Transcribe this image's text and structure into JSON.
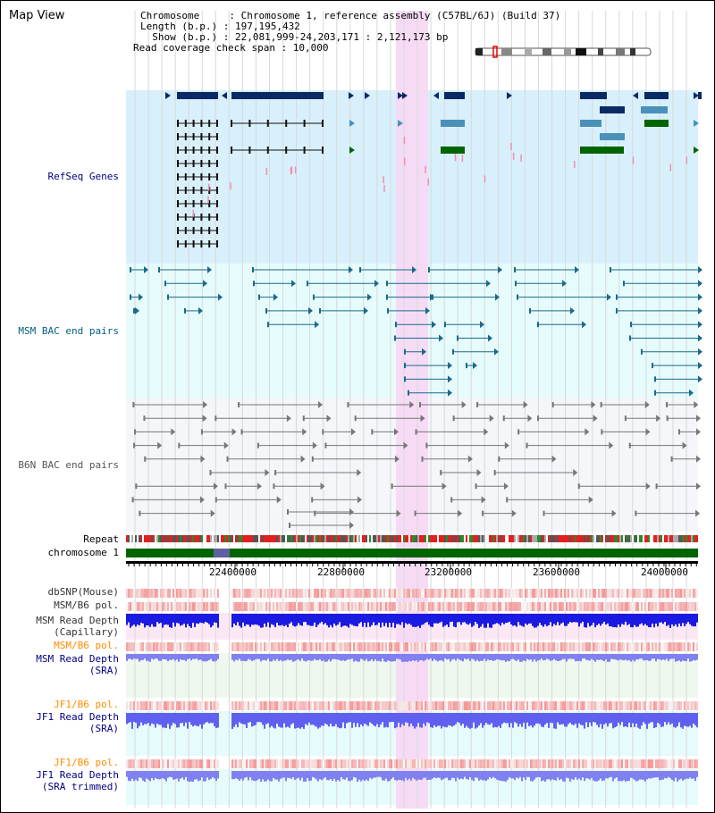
{
  "title": "Map View",
  "info": {
    "chromosome_line": "Chromosome     : Chromosome 1, reference assembly (C57BL/6J) (Build 37)",
    "length_line": "Length (b.p.) : 197,195,432",
    "show_line": "  Show (b.p.) : 22,081,999-24,203,171 : 2,121,173 bp",
    "coverage_line": "Read coverage check span : 10,000"
  },
  "tracks": {
    "refseq": "RefSeq Genes",
    "msm_bac": "MSM BAC end pairs",
    "b6n_bac": "B6N BAC end pairs",
    "repeat": "Repeat",
    "chromosome": "chromosome 1",
    "dbsnp": "dbSNP(Mouse)",
    "msm_b6_pol_1": "MSM/B6 pol.",
    "msm_read_depth_cap": "MSM Read Depth",
    "capillary": "(Capillary)",
    "msm_b6_pol_2": "MSM/B6 pol.",
    "msm_read_depth_sra": "MSM Read Depth",
    "sra_1": "(SRA)",
    "jf1_b6_pol_1": "JF1/B6 pol.",
    "jf1_read_depth": "JF1 Read Depth",
    "sra_2": "(SRA)",
    "jf1_b6_pol_2": "JF1/B6 pol.",
    "jf1_read_depth_trim": "JF1 Read Depth",
    "sra_trimmed": "(SRA trimmed)"
  },
  "ruler": [
    "22400000",
    "22800000",
    "23200000",
    "23600000",
    "24000000"
  ],
  "colors": {
    "refseq_bg": "#d8f0fb",
    "msm_bg": "#e6fbfb",
    "b6n_bg": "#f4f6fa",
    "highlight": "#f7d9f4",
    "refseq_label": "#000080",
    "msm_label": "#006080",
    "orange_label": "#ff8c00",
    "navy_label": "#000080"
  }
}
